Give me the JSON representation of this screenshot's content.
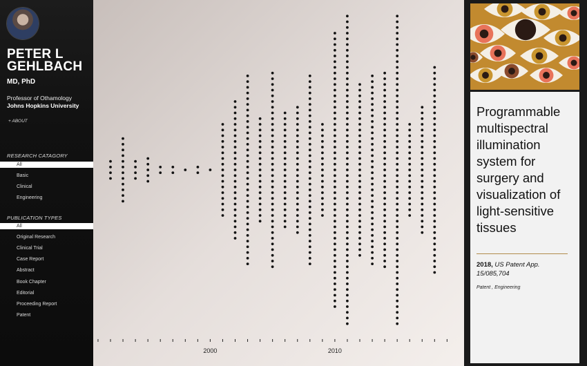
{
  "profile": {
    "name": "PETER L GEHLBACH",
    "degree": "MD, PhD",
    "title": "Professor of Othamology",
    "university": "Johns Hopkins University",
    "about_link": "+ ABOUT"
  },
  "sidebar": {
    "research_heading": "RESEARCH CATAGORY",
    "research_items": [
      "All",
      "Basic",
      "Clinical",
      "Engineering"
    ],
    "research_selected": 0,
    "types_heading": "PUBLICATION TYPES",
    "type_items": [
      "All",
      "Original Research",
      "Clinical Trial",
      "Case Report",
      "Abstract",
      "Book Chapter",
      "Editorial",
      "Proceeding Report",
      "Patent"
    ],
    "types_selected": 0
  },
  "chart_data": {
    "type": "scatter",
    "title": "",
    "xlabel": "",
    "ylabel": "",
    "x_ticks_labeled": [
      2000,
      2010
    ],
    "xlim": [
      1991,
      2019
    ],
    "point_color": "#111111",
    "publication_counts_by_year": [
      {
        "year": 1992,
        "count": 4
      },
      {
        "year": 1993,
        "count": 12
      },
      {
        "year": 1994,
        "count": 4
      },
      {
        "year": 1995,
        "count": 5
      },
      {
        "year": 1996,
        "count": 2
      },
      {
        "year": 1997,
        "count": 2
      },
      {
        "year": 1998,
        "count": 1
      },
      {
        "year": 1999,
        "count": 2
      },
      {
        "year": 2000,
        "count": 1
      },
      {
        "year": 2001,
        "count": 17
      },
      {
        "year": 2002,
        "count": 25
      },
      {
        "year": 2003,
        "count": 34
      },
      {
        "year": 2004,
        "count": 19
      },
      {
        "year": 2005,
        "count": 35
      },
      {
        "year": 2006,
        "count": 21
      },
      {
        "year": 2007,
        "count": 23
      },
      {
        "year": 2008,
        "count": 34
      },
      {
        "year": 2009,
        "count": 17
      },
      {
        "year": 2010,
        "count": 49
      },
      {
        "year": 2011,
        "count": 55
      },
      {
        "year": 2012,
        "count": 31
      },
      {
        "year": 2013,
        "count": 34
      },
      {
        "year": 2014,
        "count": 35
      },
      {
        "year": 2015,
        "count": 55
      },
      {
        "year": 2016,
        "count": 17
      },
      {
        "year": 2017,
        "count": 23
      },
      {
        "year": 2018,
        "count": 37
      }
    ]
  },
  "detail": {
    "image_icon": "eyes-pattern-image",
    "image_colors": {
      "bg": "#c28a2f",
      "white": "#f4efe6",
      "orange": "#e8735a",
      "brown": "#8a4a2c",
      "gold": "#c9952f",
      "pupil": "#2a1a14"
    },
    "title": "Programmable multispectral illumination system for surgery and visualization of light-sensitive tissues",
    "year": "2018,",
    "source": "US Patent App.",
    "number": "15/085,704",
    "tags": "Patent , Engineering"
  }
}
